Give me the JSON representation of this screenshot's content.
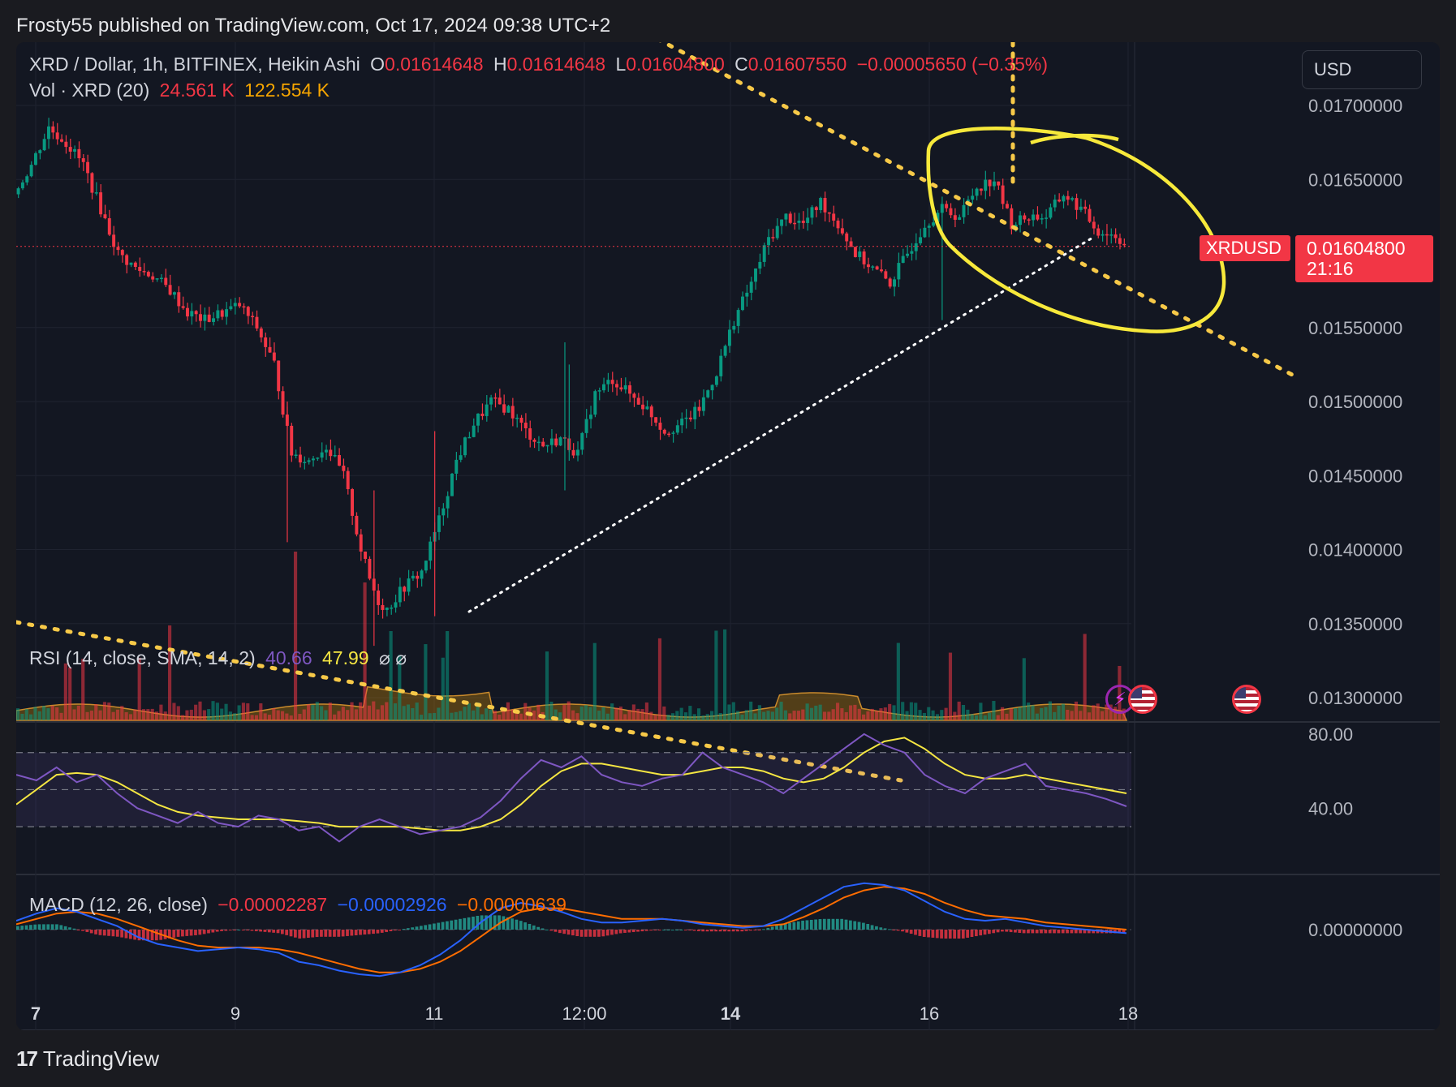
{
  "attribution": "Frosty55 published on TradingView.com, Oct 17, 2024 09:38 UTC+2",
  "currency": "USD",
  "legend": {
    "symbol": "XRD / Dollar, 1h, BITFINEX, Heikin Ashi",
    "o_label": "O",
    "o_value": "0.01614648",
    "h_label": "H",
    "h_value": "0.01614648",
    "l_label": "L",
    "l_value": "0.01604800",
    "c_label": "C",
    "c_value": "0.01607550",
    "change": "−0.00005650 (−0.35%)",
    "vol_label": "Vol · XRD (20)",
    "vol_value": "24.561 K",
    "vol_ma": "122.554 K",
    "rsi_label": "RSI (14, close, SMA, 14, 2)",
    "rsi_value": "40.66",
    "rsi_sma": "47.99",
    "rsi_na": "⌀  ⌀",
    "macd_label": "MACD (12, 26, close)",
    "macd_hist": "−0.00002287",
    "macd_line": "−0.00002926",
    "macd_signal": "−0.00000639"
  },
  "price_tag": {
    "symbol": "XRDUSD",
    "price": "0.01604800",
    "countdown": "21:16"
  },
  "footer": {
    "brand": "TradingView",
    "mark": "17"
  },
  "colors": {
    "up": "#089981",
    "down": "#f23645",
    "trend": "#f7c948",
    "circle": "#f7e93b",
    "rsi": "#7e57c2",
    "rsi_ma": "#f5e642",
    "macd": "#2962ff",
    "signal": "#ff6d00"
  },
  "chart_data": {
    "type": "candlestick",
    "style": "Heikin Ashi",
    "interval": "1h",
    "x_ticks": [
      "7",
      "9",
      "11",
      "12:00",
      "14",
      "16",
      "18"
    ],
    "y_ticks": [
      "0.01700000",
      "0.01650000",
      "0.01550000",
      "0.01500000",
      "0.01450000",
      "0.01400000",
      "0.01350000",
      "0.01300000"
    ],
    "ylim": [
      0.01285,
      0.0173
    ],
    "rsi_ticks": [
      "80.00",
      "40.00"
    ],
    "macd_ticks": [
      "0.00000000"
    ],
    "price_path": [
      [
        0,
        0.0164
      ],
      [
        4,
        0.0166
      ],
      [
        8,
        0.01685
      ],
      [
        12,
        0.01675
      ],
      [
        16,
        0.0166
      ],
      [
        20,
        0.0163
      ],
      [
        24,
        0.016
      ],
      [
        28,
        0.0159
      ],
      [
        32,
        0.01585
      ],
      [
        36,
        0.01575
      ],
      [
        40,
        0.0156
      ],
      [
        44,
        0.01555
      ],
      [
        48,
        0.0156
      ],
      [
        52,
        0.01565
      ],
      [
        56,
        0.0155
      ],
      [
        60,
        0.01525
      ],
      [
        62,
        0.01495
      ],
      [
        64,
        0.01465
      ],
      [
        68,
        0.0146
      ],
      [
        72,
        0.0147
      ],
      [
        76,
        0.0145
      ],
      [
        80,
        0.014
      ],
      [
        82,
        0.0138
      ],
      [
        84,
        0.01365
      ],
      [
        86,
        0.0136
      ],
      [
        90,
        0.01375
      ],
      [
        94,
        0.01385
      ],
      [
        98,
        0.0142
      ],
      [
        102,
        0.0146
      ],
      [
        106,
        0.01485
      ],
      [
        110,
        0.015
      ],
      [
        114,
        0.01495
      ],
      [
        118,
        0.0148
      ],
      [
        122,
        0.0147
      ],
      [
        126,
        0.01475
      ],
      [
        130,
        0.01465
      ],
      [
        134,
        0.01505
      ],
      [
        138,
        0.01515
      ],
      [
        142,
        0.01505
      ],
      [
        146,
        0.01495
      ],
      [
        150,
        0.0148
      ],
      [
        154,
        0.01485
      ],
      [
        158,
        0.01495
      ],
      [
        162,
        0.0152
      ],
      [
        166,
        0.01555
      ],
      [
        170,
        0.0158
      ],
      [
        174,
        0.0161
      ],
      [
        178,
        0.01625
      ],
      [
        182,
        0.0162
      ],
      [
        186,
        0.01635
      ],
      [
        190,
        0.0162
      ],
      [
        194,
        0.016
      ],
      [
        198,
        0.0159
      ],
      [
        202,
        0.0158
      ],
      [
        206,
        0.016
      ],
      [
        210,
        0.0162
      ],
      [
        214,
        0.0163
      ],
      [
        218,
        0.01625
      ],
      [
        222,
        0.01645
      ],
      [
        226,
        0.0165
      ],
      [
        230,
        0.0162
      ],
      [
        234,
        0.01625
      ],
      [
        238,
        0.01625
      ],
      [
        242,
        0.0164
      ],
      [
        246,
        0.0163
      ],
      [
        250,
        0.01615
      ],
      [
        254,
        0.01612
      ],
      [
        256,
        0.01607
      ]
    ],
    "volume": {
      "shown": true
    },
    "rsi": {
      "range": [
        20,
        90
      ],
      "bands": [
        70,
        50,
        30
      ],
      "values": [
        58,
        55,
        62,
        54,
        58,
        48,
        40,
        36,
        32,
        38,
        32,
        30,
        36,
        34,
        28,
        30,
        22,
        30,
        34,
        30,
        26,
        28,
        30,
        35,
        44,
        56,
        66,
        62,
        68,
        58,
        54,
        52,
        56,
        58,
        70,
        62,
        58,
        54,
        48,
        56,
        64,
        72,
        80,
        74,
        70,
        58,
        52,
        48,
        56,
        60,
        64,
        52,
        50,
        48,
        45,
        41
      ]
    },
    "rsi_sma": [
      42,
      50,
      58,
      59,
      58,
      54,
      48,
      42,
      38,
      36,
      35,
      34,
      34,
      34,
      33,
      32,
      30,
      30,
      30,
      30,
      29,
      28,
      28,
      30,
      34,
      42,
      52,
      60,
      64,
      64,
      62,
      60,
      58,
      58,
      60,
      62,
      62,
      60,
      56,
      54,
      56,
      62,
      70,
      76,
      78,
      72,
      64,
      58,
      56,
      56,
      58,
      56,
      54,
      52,
      50,
      48
    ],
    "macd_line": [
      0.5,
      0.9,
      1.2,
      1.0,
      0.6,
      0.2,
      -0.4,
      -0.8,
      -1.0,
      -1.2,
      -1.1,
      -1.0,
      -1.1,
      -1.3,
      -1.8,
      -2.0,
      -2.3,
      -2.5,
      -2.6,
      -2.4,
      -2.0,
      -1.4,
      -0.6,
      0.4,
      1.2,
      1.5,
      1.3,
      1.0,
      0.6,
      0.4,
      0.4,
      0.5,
      0.6,
      0.5,
      0.3,
      0.2,
      0.1,
      0.2,
      0.6,
      1.2,
      1.8,
      2.4,
      2.6,
      2.5,
      2.2,
      1.6,
      1.0,
      0.6,
      0.5,
      0.6,
      0.4,
      0.2,
      0.1,
      0.0,
      -0.1,
      -0.2
    ],
    "macd_signal": [
      0.3,
      0.6,
      0.9,
      1.0,
      0.9,
      0.6,
      0.2,
      -0.2,
      -0.6,
      -0.9,
      -1.0,
      -1.0,
      -1.0,
      -1.1,
      -1.3,
      -1.6,
      -1.9,
      -2.2,
      -2.4,
      -2.4,
      -2.2,
      -1.8,
      -1.2,
      -0.4,
      0.4,
      1.0,
      1.2,
      1.2,
      1.0,
      0.8,
      0.6,
      0.6,
      0.6,
      0.5,
      0.4,
      0.3,
      0.2,
      0.2,
      0.3,
      0.7,
      1.2,
      1.8,
      2.2,
      2.4,
      2.3,
      2.0,
      1.5,
      1.1,
      0.8,
      0.7,
      0.6,
      0.4,
      0.3,
      0.2,
      0.1,
      0.0
    ]
  }
}
